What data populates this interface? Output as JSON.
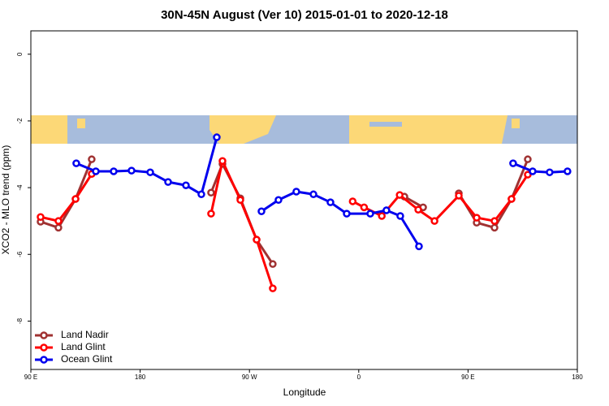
{
  "chart_data": {
    "type": "line",
    "title": "30N-45N August (Ver 10)   2015-01-01 to 2020-12-18",
    "x_label": "Longitude",
    "y_label": "XCO2 - MLO trend (ppm)",
    "xlim": [
      90,
      540
    ],
    "xticks": [
      {
        "value": 90,
        "label": "90 E"
      },
      180,
      {
        "value": 270,
        "label": "90 W"
      },
      {
        "value": 360,
        "label": "0"
      },
      {
        "value": 450,
        "label": "90 E"
      },
      {
        "value": 540,
        "label": "180"
      }
    ],
    "ylim": [
      -9.45,
      0.7
    ],
    "yticks": [
      0,
      -2,
      -4,
      -6,
      -8
    ],
    "legend": "bottom-left",
    "series": [
      {
        "name": "Land Nadir",
        "color": "#a03232",
        "x": [
          98.0,
          112.7,
          126.8,
          140.1,
          null,
          238.4,
          247.8,
          262.5,
          275.9,
          289.2,
          null,
          397.6,
          413.0,
          null,
          442.4,
          457.1,
          471.8,
          485.8,
          499.2
        ],
        "values": [
          -5.02,
          -5.2,
          -4.34,
          -3.15,
          null,
          -4.15,
          -3.29,
          -4.32,
          -5.56,
          -6.29,
          null,
          -4.27,
          -4.59,
          null,
          -4.17,
          -5.05,
          -5.2,
          -4.34,
          -3.15
        ]
      },
      {
        "name": "Land Glint",
        "color": "#ff0000",
        "x": [
          98.0,
          112.7,
          126.8,
          140.1,
          null,
          238.4,
          247.8,
          262.5,
          275.9,
          289.2,
          null,
          355.0,
          364.4,
          379.0,
          393.7,
          409.0,
          422.4,
          442.4,
          457.1,
          471.8,
          485.8,
          499.2
        ],
        "values": [
          -4.88,
          -5.0,
          -4.34,
          -3.59,
          null,
          -4.78,
          -3.2,
          -4.37,
          -5.56,
          -7.02,
          null,
          -4.41,
          -4.59,
          -4.85,
          -4.22,
          -4.66,
          -5.0,
          -4.24,
          -4.9,
          -5.0,
          -4.34,
          -3.61
        ]
      },
      {
        "name": "Ocean Glint",
        "color": "#0000ee",
        "x": [
          127.4,
          143.5,
          158.2,
          172.9,
          188.3,
          203.0,
          217.7,
          230.4,
          243.1,
          null,
          279.9,
          293.9,
          308.6,
          322.7,
          336.7,
          350.1,
          369.5,
          382.8,
          394.2,
          409.6,
          null,
          487.1,
          503.2,
          517.2,
          531.9
        ],
        "values": [
          -3.27,
          -3.51,
          -3.51,
          -3.49,
          -3.54,
          -3.83,
          -3.93,
          -4.2,
          -2.49,
          null,
          -4.71,
          -4.37,
          -4.12,
          -4.2,
          -4.44,
          -4.78,
          -4.78,
          -4.68,
          -4.85,
          -5.76,
          null,
          -3.27,
          -3.51,
          -3.54,
          -3.51
        ]
      }
    ]
  }
}
